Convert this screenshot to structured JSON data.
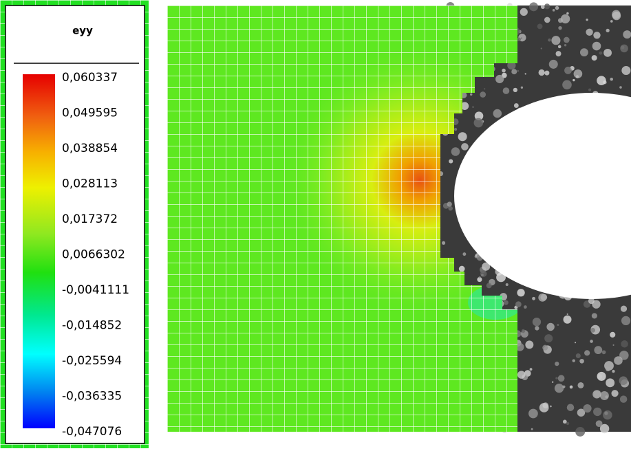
{
  "legend": {
    "title": "eyy",
    "labels": [
      "0,060337",
      "0,049595",
      "0,038854",
      "0,028113",
      "0,017372",
      "0,0066302",
      "-0,0041111",
      "-0,014852",
      "-0,025594",
      "-0,036335",
      "-0,047076"
    ]
  }
}
